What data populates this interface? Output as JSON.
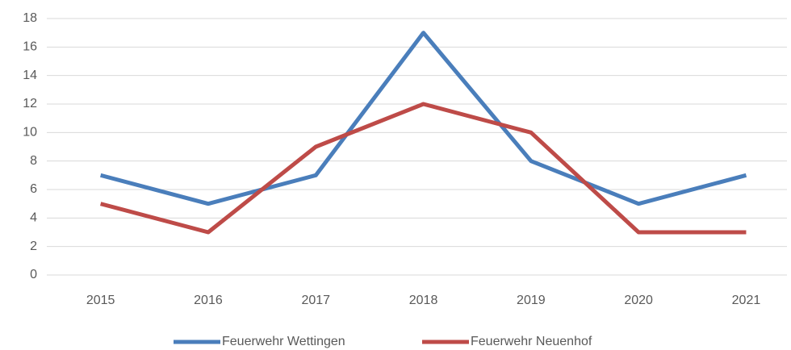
{
  "chart_data": {
    "type": "line",
    "categories": [
      "2015",
      "2016",
      "2017",
      "2018",
      "2019",
      "2020",
      "2021"
    ],
    "series": [
      {
        "name": "Feuerwehr Wettingen",
        "color": "#4a7ebb",
        "values": [
          7,
          5,
          7,
          17,
          8,
          5,
          7
        ]
      },
      {
        "name": "Feuerwehr Neuenhof",
        "color": "#be4b48",
        "values": [
          5,
          3,
          9,
          12,
          10,
          3,
          3
        ]
      }
    ],
    "ylim": [
      0,
      18
    ],
    "yticks": [
      0,
      2,
      4,
      6,
      8,
      10,
      12,
      14,
      16,
      18
    ],
    "grid": true,
    "legend": "bottom"
  }
}
